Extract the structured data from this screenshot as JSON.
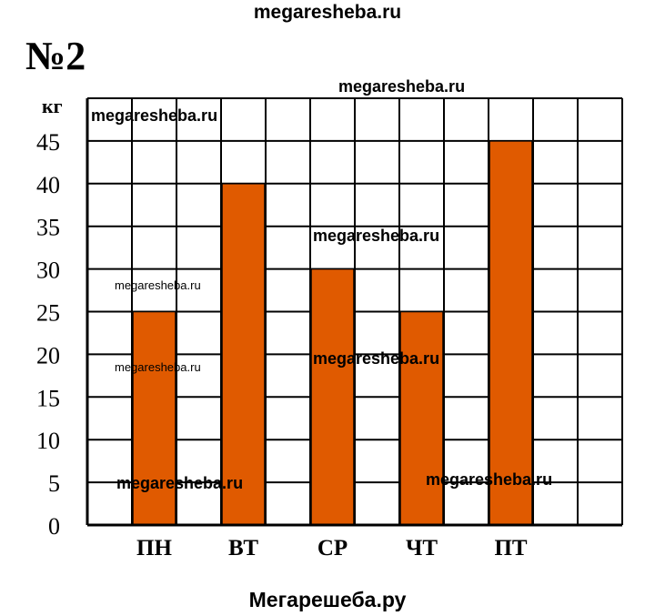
{
  "header": {
    "site": "megaresheba.ru",
    "task_number": "№2"
  },
  "footer": {
    "site": "Мегарешеба.ру"
  },
  "watermarks": [
    "megaresheba.ru",
    "megaresheba.ru",
    "megaresheba.ru",
    "megaresheba.ru",
    "megaresheba.ru",
    "megaresheba.ru",
    "megaresheba.ru",
    "megaresheba.ru"
  ],
  "chart_data": {
    "type": "bar",
    "title": "",
    "xlabel": "",
    "ylabel": "кг",
    "categories": [
      "ПН",
      "ВТ",
      "СР",
      "ЧТ",
      "ПТ"
    ],
    "values": [
      25,
      40,
      30,
      25,
      45
    ],
    "ylim": [
      0,
      50
    ],
    "yticks": [
      "0",
      "5",
      "10",
      "15",
      "20",
      "25",
      "30",
      "35",
      "40",
      "45"
    ],
    "grid": true,
    "bar_color": "#e05a00",
    "legend": "none"
  }
}
